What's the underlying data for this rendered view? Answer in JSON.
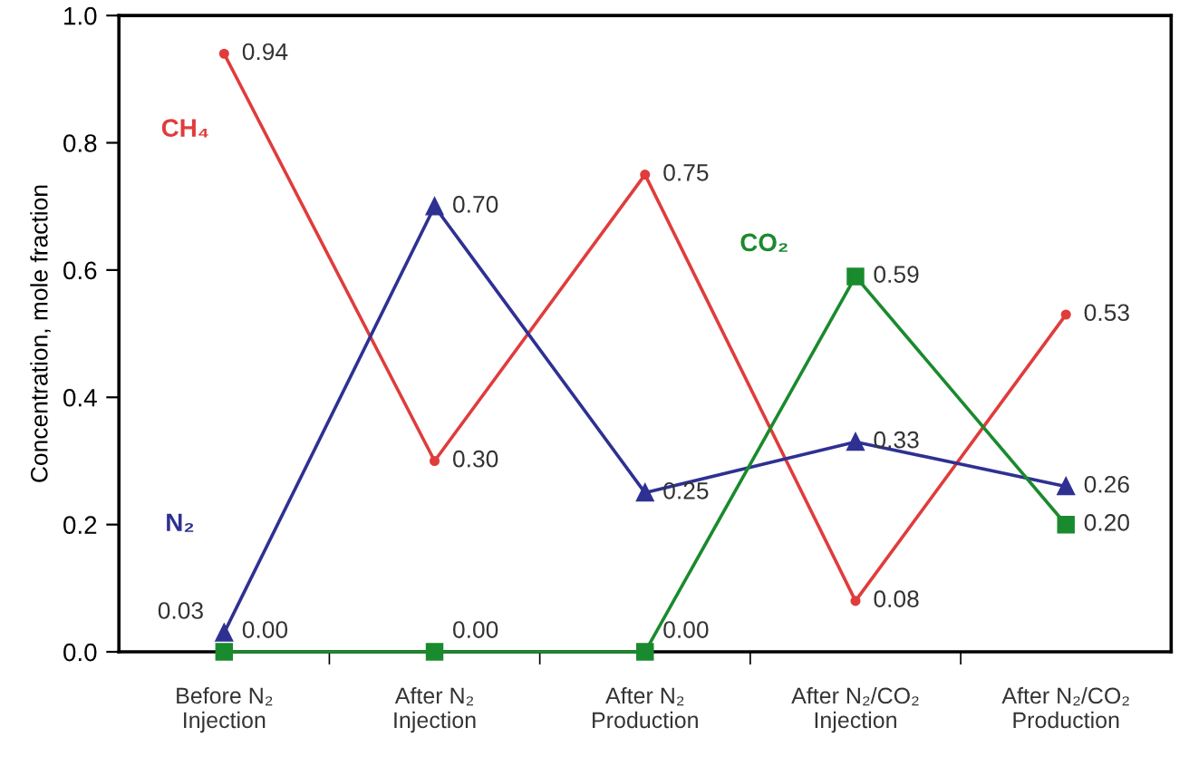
{
  "chart_data": {
    "type": "line",
    "ylabel": "Concentration, mole fraction",
    "categories": [
      "Before N₂\nInjection",
      "After N₂\nInjection",
      "After N₂\nProduction",
      "After N₂/CO₂\nInjection",
      "After N₂/CO₂\nProduction"
    ],
    "ylim": [
      0,
      1.0
    ],
    "yticks": [
      {
        "value": 0,
        "label": "0.0"
      },
      {
        "value": 0.2,
        "label": "0.2"
      },
      {
        "value": 0.4,
        "label": "0.4"
      },
      {
        "value": 0.6,
        "label": "0.6"
      },
      {
        "value": 0.8,
        "label": "0.8"
      },
      {
        "value": 1.0,
        "label": "1.0"
      }
    ],
    "grid": false,
    "series": [
      {
        "name": "CH₄",
        "color": "#e03c3c",
        "marker": "circle",
        "values": [
          0.94,
          0.3,
          0.75,
          0.08,
          0.53
        ],
        "value_labels": [
          "0.94",
          "0.30",
          "0.75",
          "0.08",
          "0.53"
        ]
      },
      {
        "name": "N₂",
        "color": "#2e3192",
        "marker": "triangle",
        "values": [
          0.03,
          0.7,
          0.25,
          0.33,
          0.26
        ],
        "value_labels": [
          "0.03",
          "0.70",
          "0.25",
          "0.33",
          "0.26"
        ]
      },
      {
        "name": "CO₂",
        "color": "#1a8a2e",
        "marker": "square",
        "values": [
          0.0,
          0.0,
          0.0,
          0.59,
          0.2
        ],
        "value_labels": [
          "0.00",
          "0.00",
          "0.00",
          "0.59",
          "0.20"
        ]
      }
    ]
  }
}
